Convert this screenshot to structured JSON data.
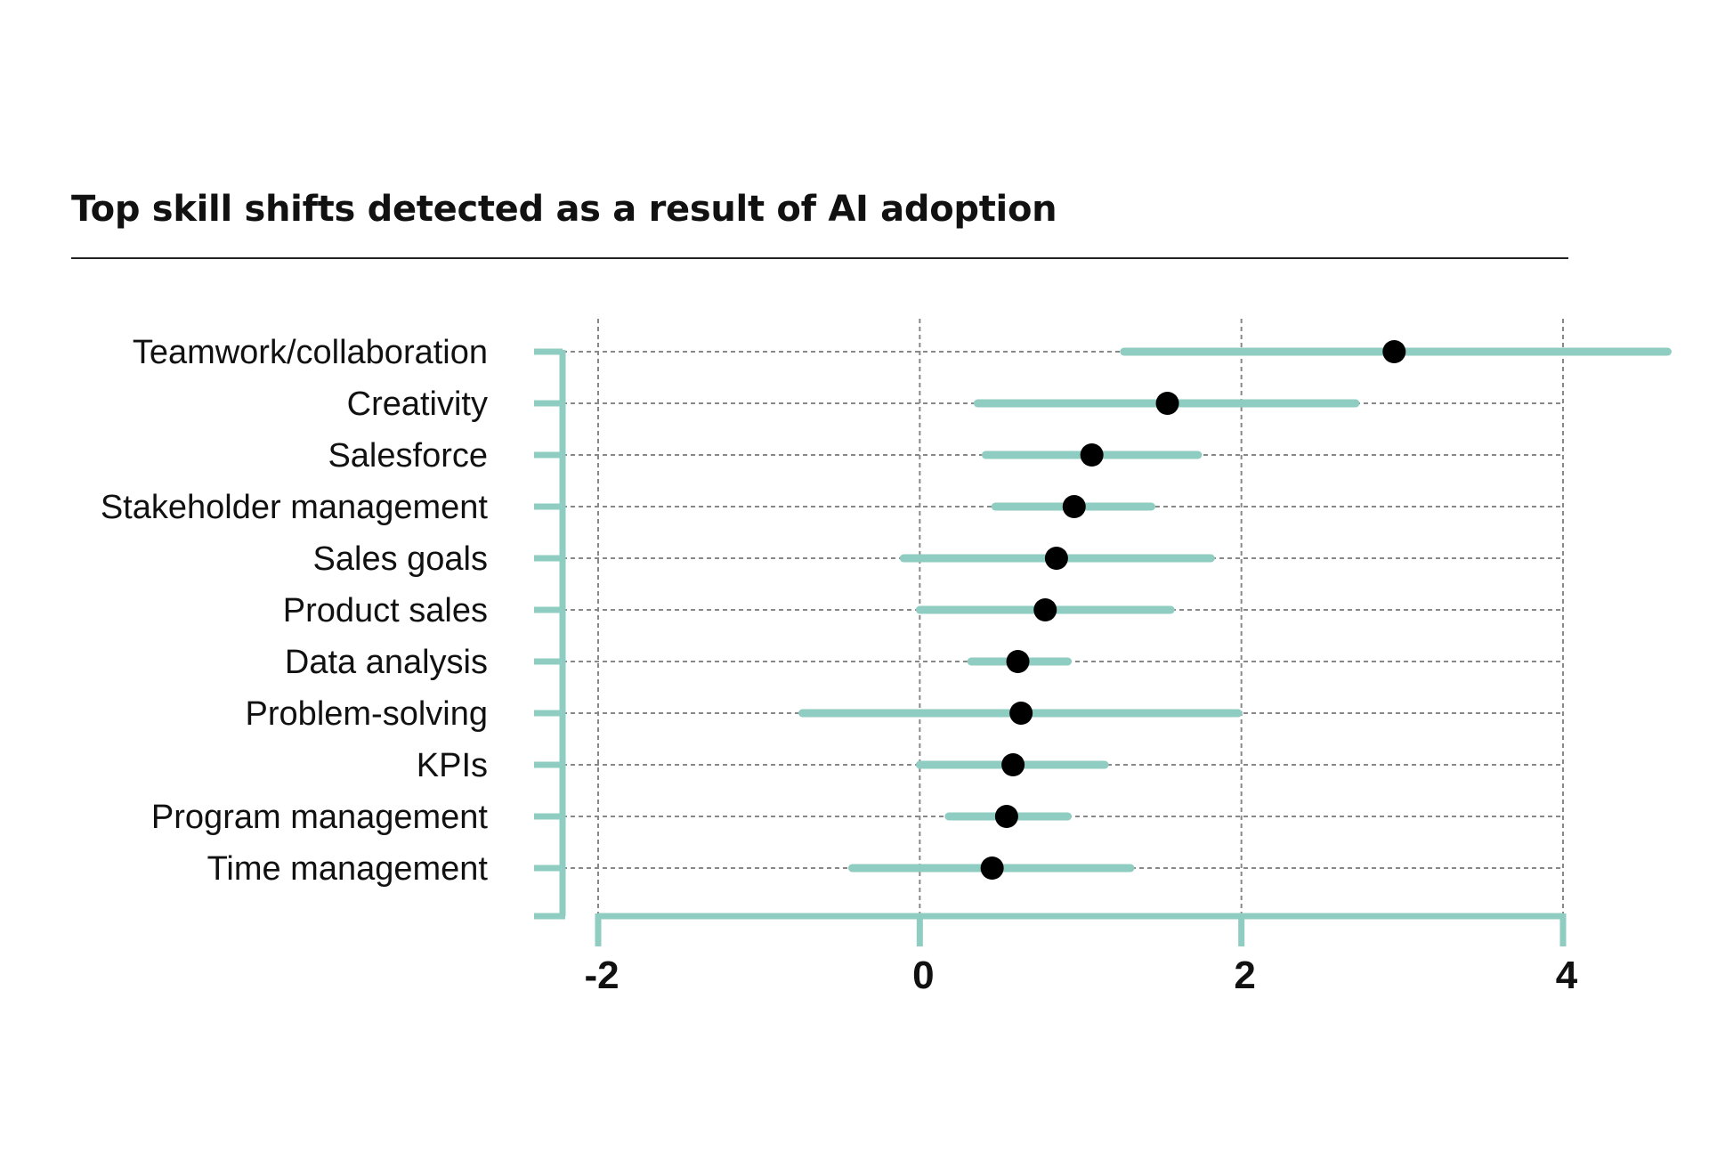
{
  "title": "Top skill shifts detected as a result of AI adoption",
  "colors": {
    "accent": "#8fcdc2",
    "point": "#000000",
    "grid": "#888888",
    "text": "#111111"
  },
  "chart_data": {
    "type": "scatter",
    "title": "Top skill shifts detected as a result of AI adoption",
    "xlabel": "",
    "ylabel": "",
    "xlim": [
      -2,
      4
    ],
    "xticks": [
      -2,
      0,
      2,
      4
    ],
    "xtick_labels": [
      "-2",
      "0",
      "2",
      "4"
    ],
    "grid": true,
    "legend": "none",
    "categories": [
      "Teamwork/collaboration",
      "Creativity",
      "Salesforce",
      "Stakeholder management",
      "Sales goals",
      "Product sales",
      "Data analysis",
      "Problem-solving",
      "KPIs",
      "Program management",
      "Time management"
    ],
    "series": [
      {
        "values": [
          2.95,
          1.54,
          1.07,
          0.96,
          0.85,
          0.78,
          0.61,
          0.63,
          0.58,
          0.54,
          0.45
        ],
        "lower": [
          1.27,
          0.36,
          0.41,
          0.47,
          -0.1,
          0.0,
          0.32,
          -0.73,
          0.0,
          0.18,
          -0.42
        ],
        "upper": [
          4.65,
          2.71,
          1.73,
          1.44,
          1.81,
          1.56,
          0.92,
          1.98,
          1.15,
          0.92,
          1.31
        ]
      }
    ]
  }
}
